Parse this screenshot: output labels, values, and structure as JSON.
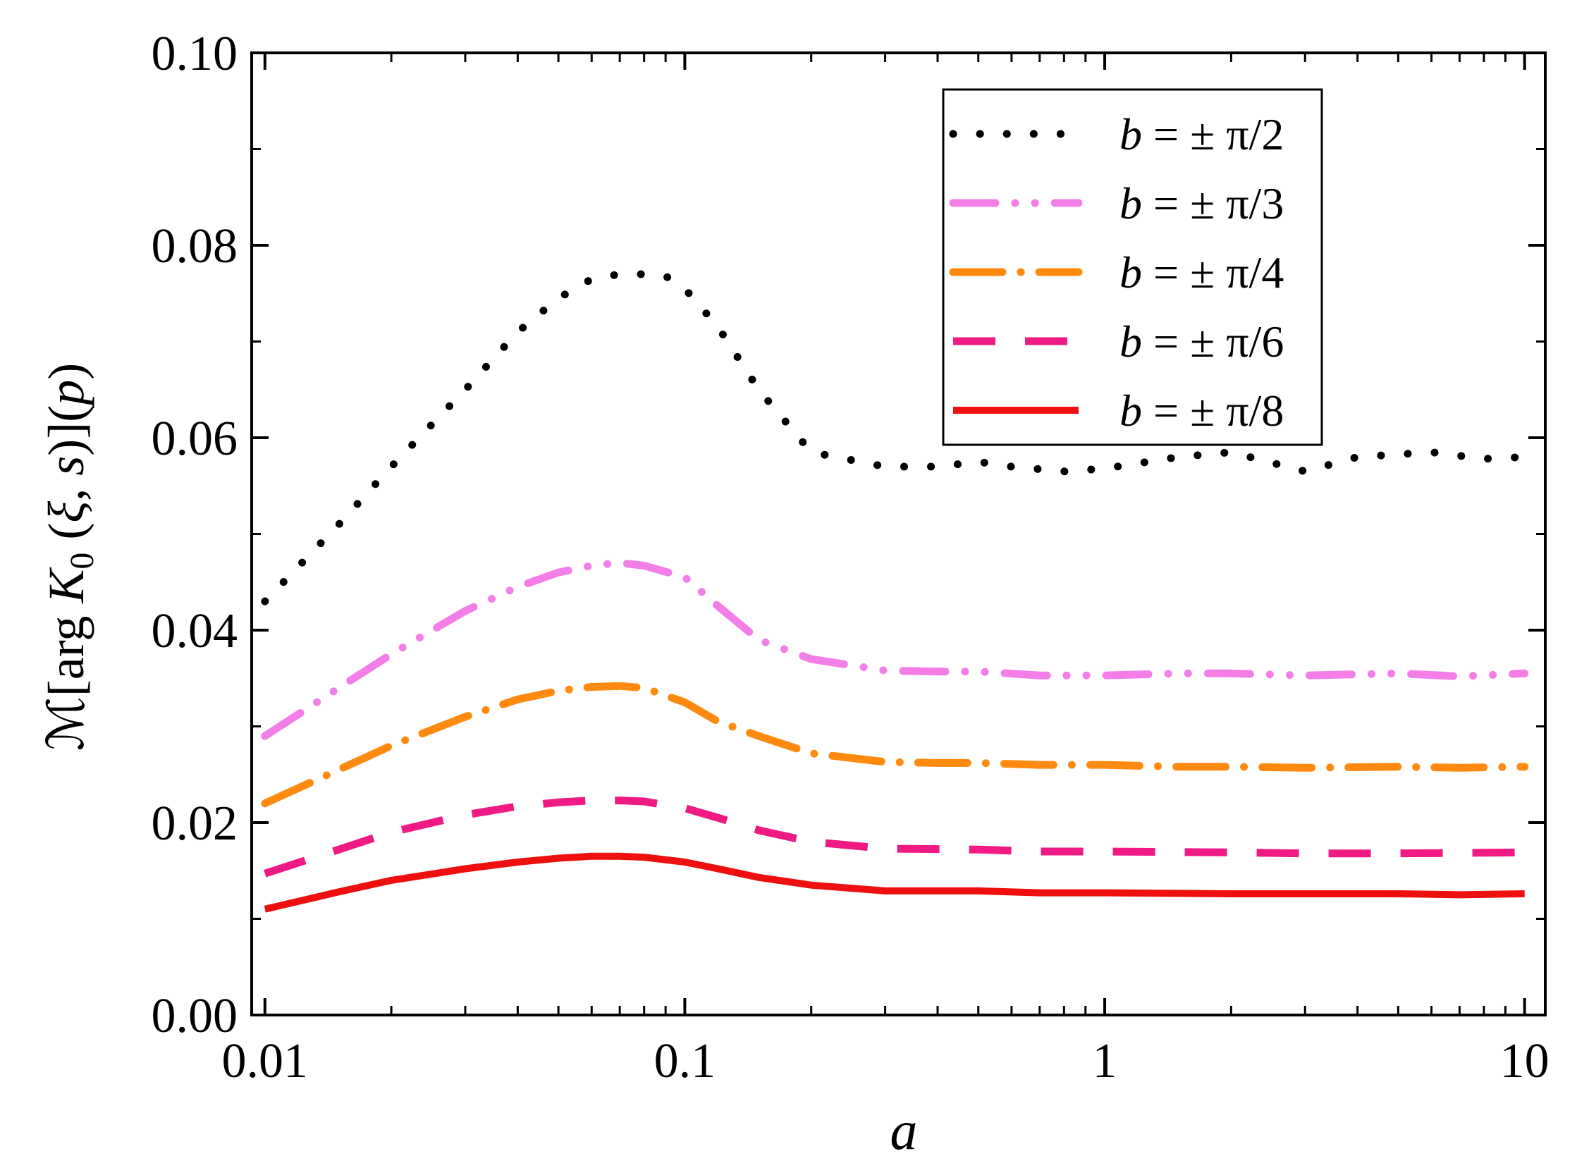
{
  "chart_data": {
    "type": "line",
    "x_scale": "log",
    "xlabel": "a",
    "ylabel": {
      "prefix": "ℳ[arg ",
      "K": "K",
      "sub": "0",
      "middle": " (",
      "xi": "ξ",
      "comma": ", ",
      "s": "s",
      "close": ")](",
      "p": "p",
      "end": ")"
    },
    "xlim": [
      0.0093,
      11.2
    ],
    "ylim": [
      0.0,
      0.1
    ],
    "x_ticks": [
      0.01,
      0.1,
      1,
      10
    ],
    "x_tick_labels": [
      "0.01",
      "0.1",
      "1",
      "10"
    ],
    "y_ticks": [
      0.0,
      0.02,
      0.04,
      0.06,
      0.08,
      0.1
    ],
    "y_tick_labels": [
      "0.00",
      "0.02",
      "0.04",
      "0.06",
      "0.08",
      "0.10"
    ],
    "legend_position": "top-right",
    "series": [
      {
        "name": "b = ± π/2",
        "label_var": "b",
        "label_rest": " = ± π/2",
        "color": "#000000",
        "style": "dot",
        "x": [
          0.01,
          0.015,
          0.02,
          0.03,
          0.04,
          0.05,
          0.06,
          0.07,
          0.08,
          0.09,
          0.1,
          0.12,
          0.15,
          0.2,
          0.3,
          0.4,
          0.5,
          0.6,
          0.8,
          1.0,
          1.5,
          2.0,
          3.0,
          4.0,
          6.0,
          8.0,
          10.0
        ],
        "y": [
          0.043,
          0.051,
          0.057,
          0.065,
          0.071,
          0.0745,
          0.0765,
          0.077,
          0.077,
          0.0768,
          0.0755,
          0.0715,
          0.065,
          0.0585,
          0.057,
          0.057,
          0.0575,
          0.057,
          0.0565,
          0.0568,
          0.058,
          0.0585,
          0.0565,
          0.058,
          0.0585,
          0.0578,
          0.058
        ]
      },
      {
        "name": "b = ± π/3",
        "label_var": "b",
        "label_rest": " = ± π/3",
        "color": "#f47ee8",
        "style": "dashdotdot",
        "x": [
          0.01,
          0.015,
          0.02,
          0.03,
          0.04,
          0.05,
          0.06,
          0.07,
          0.08,
          0.1,
          0.12,
          0.15,
          0.2,
          0.3,
          0.4,
          0.5,
          0.7,
          1.0,
          1.5,
          2.0,
          3.0,
          5.0,
          7.0,
          10.0
        ],
        "y": [
          0.029,
          0.034,
          0.0375,
          0.042,
          0.0445,
          0.046,
          0.0467,
          0.047,
          0.0467,
          0.0455,
          0.0425,
          0.039,
          0.037,
          0.0358,
          0.0357,
          0.0357,
          0.0353,
          0.0353,
          0.0355,
          0.0355,
          0.0353,
          0.0355,
          0.0352,
          0.0355
        ]
      },
      {
        "name": "b = ± π/4",
        "label_var": "b",
        "label_rest": " = ± π/4",
        "color": "#ff8a0f",
        "style": "dashdot",
        "x": [
          0.01,
          0.015,
          0.02,
          0.03,
          0.04,
          0.05,
          0.06,
          0.07,
          0.08,
          0.1,
          0.12,
          0.15,
          0.2,
          0.3,
          0.4,
          0.5,
          0.7,
          1.0,
          1.5,
          2.0,
          3.0,
          5.0,
          7.0,
          10.0
        ],
        "y": [
          0.022,
          0.0255,
          0.028,
          0.031,
          0.0328,
          0.0337,
          0.0341,
          0.0342,
          0.034,
          0.0325,
          0.0305,
          0.029,
          0.0272,
          0.0263,
          0.0262,
          0.0262,
          0.026,
          0.026,
          0.0258,
          0.0258,
          0.0257,
          0.0258,
          0.0257,
          0.0258
        ]
      },
      {
        "name": "b = ± π/6",
        "label_var": "b",
        "label_rest": " = ± π/6",
        "color": "#ef1a84",
        "style": "dash",
        "x": [
          0.01,
          0.015,
          0.02,
          0.03,
          0.04,
          0.05,
          0.06,
          0.07,
          0.08,
          0.1,
          0.12,
          0.15,
          0.2,
          0.3,
          0.5,
          0.7,
          1.0,
          2.0,
          3.0,
          5.0,
          10.0
        ],
        "y": [
          0.0147,
          0.0172,
          0.019,
          0.0208,
          0.0217,
          0.0221,
          0.0223,
          0.0223,
          0.0222,
          0.0215,
          0.0205,
          0.0192,
          0.018,
          0.0173,
          0.0172,
          0.017,
          0.017,
          0.0169,
          0.0168,
          0.0168,
          0.0169
        ]
      },
      {
        "name": "b = ± π/8",
        "label_var": "b",
        "label_rest": " = ± π/8",
        "color": "#ee0f0f",
        "style": "solid",
        "x": [
          0.01,
          0.015,
          0.02,
          0.03,
          0.04,
          0.05,
          0.06,
          0.07,
          0.08,
          0.1,
          0.12,
          0.15,
          0.2,
          0.3,
          0.5,
          0.7,
          1.0,
          2.0,
          3.0,
          5.0,
          7.0,
          10.0
        ],
        "y": [
          0.011,
          0.0128,
          0.014,
          0.0152,
          0.0159,
          0.0163,
          0.0165,
          0.0165,
          0.0164,
          0.0159,
          0.0152,
          0.0143,
          0.0135,
          0.0129,
          0.0129,
          0.0127,
          0.0127,
          0.0126,
          0.0126,
          0.0126,
          0.0125,
          0.0126
        ]
      }
    ]
  }
}
